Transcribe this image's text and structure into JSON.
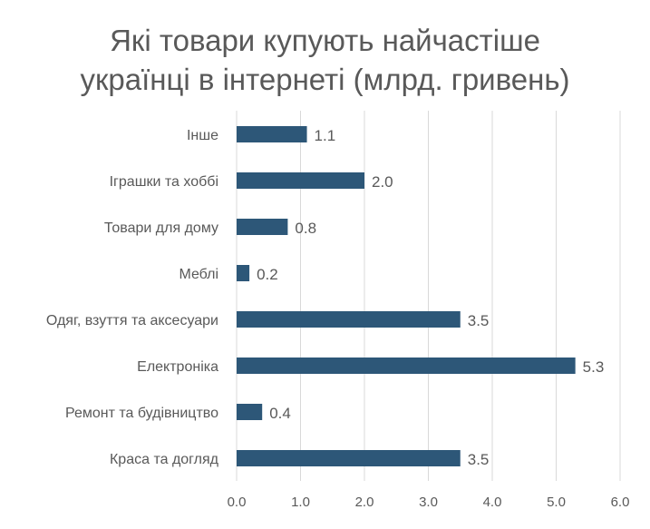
{
  "chart_data": {
    "type": "bar",
    "orientation": "horizontal",
    "title_lines": [
      "Які товари купують найчастіше",
      "українці в інтернеті (млрд. гривень)"
    ],
    "categories": [
      "Інше",
      "Іграшки та хоббі",
      "Товари для дому",
      "Меблі",
      "Одяг, взуття та аксесуари",
      "Електроніка",
      "Ремонт та будівництво",
      "Краса та догляд"
    ],
    "values": [
      1.1,
      2.0,
      0.8,
      0.2,
      3.5,
      5.3,
      0.4,
      3.5
    ],
    "data_labels": [
      "1.1",
      "2.0",
      "0.8",
      "0.2",
      "3.5",
      "5.3",
      "0.4",
      "3.5"
    ],
    "xticks": [
      "0.0",
      "1.0",
      "2.0",
      "3.0",
      "4.0",
      "5.0",
      "6.0"
    ],
    "xlim": [
      0,
      6
    ],
    "xlabel": "",
    "ylabel": "",
    "grid": true,
    "legend": "none",
    "colors": {
      "bar": "#2D5778",
      "grid": "#D9D9D9",
      "text": "#595959",
      "title": "#595959"
    }
  }
}
